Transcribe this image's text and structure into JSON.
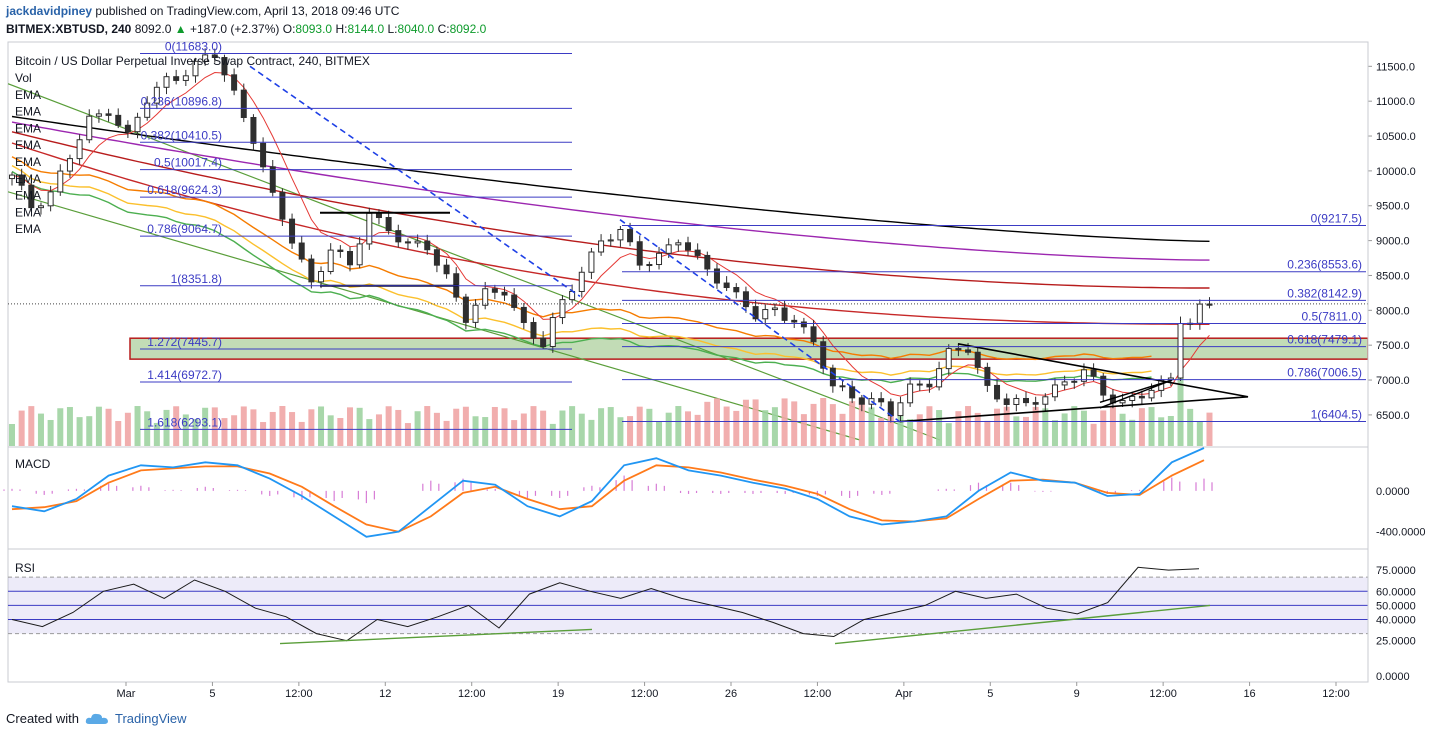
{
  "header": {
    "author": "jackdavidpiney",
    "published": "published on TradingView.com, April 13, 2018 09:46 UTC",
    "symbol": "BITMEX:XBTUSD, 240",
    "price": "8092.0",
    "change_icon": "triangle-up-icon",
    "change": "+187.0 (+2.37%)",
    "o_label": "O:",
    "o_value": "8093.0",
    "h_label": "H:",
    "h_value": "8144.0",
    "l_label": "L:",
    "l_value": "8040.0",
    "c_label": "C:",
    "c_value": "8092.0"
  },
  "footer": {
    "created_with": "Created with",
    "brand": "TradingView",
    "brand_icon": "tradingview-cloud-icon"
  },
  "colors": {
    "fib": "#3b3bc4",
    "bull": "#2e2e2e",
    "vol_up": "#9fd3a1",
    "vol_down": "#f0a5a5",
    "macd": "#2196f3",
    "signal": "#ff7a1a",
    "hist": "#d77cd6",
    "rsi": "#1a1a1a",
    "zone_fill": "#8fbf7a",
    "zone_border": "#b71c1c",
    "trend_green": "#5a9e3a"
  },
  "chart_data": [
    {
      "type": "candlestick",
      "title": "Bitcoin / US Dollar Perpetual Inverse Swap Contract, 240, BITMEX",
      "legend": [
        "Vol",
        "EMA",
        "EMA",
        "EMA",
        "EMA",
        "EMA",
        "EMA",
        "EMA",
        "EMA",
        "EMA"
      ],
      "ylim": [
        6140,
        11820
      ],
      "y_ticks": [
        "11500.0",
        "11000.0",
        "10500.0",
        "10000.0",
        "9500.0",
        "9000.0",
        "8500.0",
        "8000.0",
        "7500.0",
        "7000.0",
        "6500.0"
      ],
      "x_ticks": [
        "Mar",
        "5",
        "12:00",
        "12",
        "12:00",
        "19",
        "12:00",
        "26",
        "12:00",
        "Apr",
        "5",
        "9",
        "12:00",
        "16",
        "12:00"
      ],
      "price_path": [
        [
          0,
          9900
        ],
        [
          2,
          9500
        ],
        [
          4,
          9700
        ],
        [
          6,
          10200
        ],
        [
          8,
          10700
        ],
        [
          10,
          10900
        ],
        [
          12,
          10500
        ],
        [
          14,
          11000
        ],
        [
          16,
          11300
        ],
        [
          18,
          11450
        ],
        [
          20,
          11600
        ],
        [
          21,
          11650
        ],
        [
          23,
          11100
        ],
        [
          25,
          10500
        ],
        [
          27,
          9600
        ],
        [
          29,
          9000
        ],
        [
          31,
          8400
        ],
        [
          33,
          8900
        ],
        [
          35,
          8600
        ],
        [
          37,
          9400
        ],
        [
          39,
          9200
        ],
        [
          41,
          8900
        ],
        [
          43,
          8900
        ],
        [
          45,
          8500
        ],
        [
          47,
          7900
        ],
        [
          49,
          8200
        ],
        [
          51,
          8300
        ],
        [
          53,
          7800
        ],
        [
          55,
          7500
        ],
        [
          57,
          8100
        ],
        [
          59,
          8600
        ],
        [
          61,
          9000
        ],
        [
          63,
          9100
        ],
        [
          65,
          8700
        ],
        [
          67,
          8800
        ],
        [
          69,
          9000
        ],
        [
          71,
          8700
        ],
        [
          73,
          8500
        ],
        [
          75,
          8200
        ],
        [
          77,
          7900
        ],
        [
          79,
          8000
        ],
        [
          81,
          7900
        ],
        [
          83,
          7500
        ],
        [
          85,
          6900
        ],
        [
          87,
          6800
        ],
        [
          89,
          6700
        ],
        [
          91,
          6500
        ],
        [
          93,
          6900
        ],
        [
          95,
          7000
        ],
        [
          97,
          7350
        ],
        [
          99,
          7450
        ],
        [
          101,
          6900
        ],
        [
          103,
          6700
        ],
        [
          105,
          6600
        ],
        [
          107,
          6800
        ],
        [
          109,
          7000
        ],
        [
          111,
          7100
        ],
        [
          113,
          6800
        ],
        [
          115,
          6700
        ],
        [
          117,
          6800
        ],
        [
          119,
          6900
        ],
        [
          120,
          7000
        ],
        [
          121,
          7900
        ],
        [
          122,
          7850
        ],
        [
          123,
          8050
        ],
        [
          124,
          8092
        ]
      ],
      "fib_retracement_1": {
        "levels": [
          "0(11683.0)",
          "0.236(10896.8)",
          "0.382(10410.5)",
          "0.5(10017.4)",
          "0.618(9624.3)",
          "0.786(9064.7)",
          "1(8351.8)",
          "1.272(7445.7)",
          "1.414(6972.7)",
          "1.618(6293.1)"
        ],
        "prices": [
          11683.0,
          10896.8,
          10410.5,
          10017.4,
          9624.3,
          9064.7,
          8351.8,
          7445.7,
          6972.7,
          6293.1
        ]
      },
      "fib_retracement_2": {
        "levels": [
          "0(9217.5)",
          "0.236(8553.6)",
          "0.382(8142.9)",
          "0.5(7811.0)",
          "0.618(7479.1)",
          "0.786(7006.5)",
          "1(6404.5)"
        ],
        "prices": [
          9217.5,
          8553.6,
          8142.9,
          7811.0,
          7479.1,
          7006.5,
          6404.5
        ]
      },
      "support_zone": [
        7300,
        7600
      ]
    },
    {
      "type": "line",
      "title": "MACD",
      "y_ticks": [
        "0.0000",
        "-400.0000"
      ],
      "ylim": [
        -560,
        420
      ],
      "series": [
        {
          "values": [
            -150,
            -200,
            -80,
            150,
            250,
            230,
            280,
            250,
            120,
            -50,
            -250,
            -450,
            -400,
            -150,
            100,
            60,
            -150,
            -250,
            -100,
            250,
            320,
            200,
            150,
            80,
            20,
            -80,
            -250,
            -330,
            -300,
            -250,
            0,
            180,
            100,
            80,
            -50,
            -30,
            280,
            420
          ]
        },
        {
          "values": [
            -180,
            -160,
            -100,
            80,
            200,
            220,
            240,
            240,
            170,
            40,
            -150,
            -330,
            -400,
            -250,
            -20,
            40,
            -80,
            -180,
            -150,
            100,
            250,
            230,
            180,
            110,
            50,
            -30,
            -180,
            -290,
            -300,
            -270,
            -80,
            100,
            110,
            80,
            -20,
            -40,
            150,
            300
          ]
        },
        {
          "values": [
            20,
            -40,
            20,
            70,
            50,
            10,
            40,
            10,
            -50,
            -90,
            -100,
            -120,
            0,
            100,
            120,
            20,
            -70,
            -70,
            50,
            150,
            70,
            -30,
            -30,
            -30,
            -30,
            -50,
            -70,
            -40,
            0,
            20,
            80,
            80,
            -10,
            0,
            -30,
            10,
            130,
            120
          ]
        }
      ]
    },
    {
      "type": "line",
      "title": "RSI",
      "y_ticks": [
        "75.0000",
        "60.0000",
        "50.0000",
        "40.0000",
        "25.0000",
        "0.0000"
      ],
      "ylim": [
        0,
        85
      ],
      "bands": [
        30,
        70
      ],
      "levels": [
        60,
        50,
        40
      ],
      "series": [
        {
          "values": [
            40,
            35,
            45,
            60,
            65,
            55,
            68,
            60,
            48,
            42,
            30,
            25,
            40,
            35,
            42,
            50,
            34,
            58,
            66,
            60,
            55,
            62,
            55,
            50,
            45,
            38,
            30,
            28,
            40,
            45,
            50,
            60,
            55,
            58,
            48,
            44,
            52,
            77,
            75,
            76
          ]
        }
      ]
    }
  ]
}
